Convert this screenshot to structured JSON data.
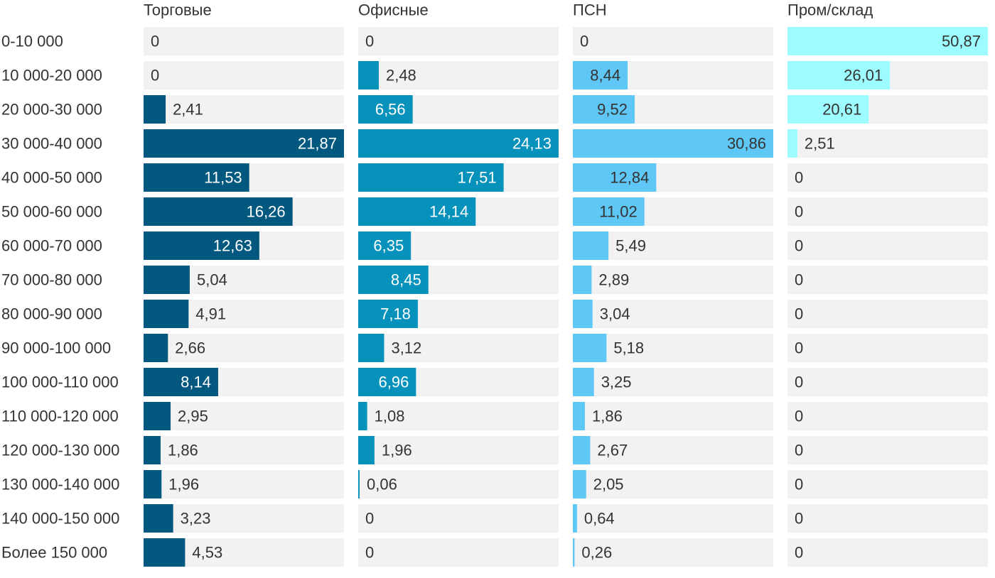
{
  "chart_data": {
    "type": "bar",
    "orientation": "horizontal",
    "layout": "small-multiples",
    "shared_axis": false,
    "grid": false,
    "legend": "none",
    "categories": [
      "0-10 000",
      "10 000-20 000",
      "20 000-30 000",
      "30 000-40 000",
      "40 000-50 000",
      "50 000-60 000",
      "60 000-70 000",
      "70 000-80 000",
      "80 000-90 000",
      "90 000-100 000",
      "100 000-110 000",
      "110 000-120 000",
      "120 000-130 000",
      "130 000-140 000",
      "140 000-150 000",
      "Более 150 000"
    ],
    "series": [
      {
        "name": "Торговые",
        "color": "#02587f",
        "values": [
          "0",
          "0",
          "2,41",
          "21,87",
          "11,53",
          "16,26",
          "12,63",
          "5,04",
          "4,91",
          "2,66",
          "8,14",
          "2,95",
          "1,86",
          "1,96",
          "3,23",
          "4,53"
        ]
      },
      {
        "name": "Офисные",
        "color": "#0692bb",
        "values": [
          "0",
          "2,48",
          "6,56",
          "24,13",
          "17,51",
          "14,14",
          "6,35",
          "8,45",
          "7,18",
          "3,12",
          "6,96",
          "1,08",
          "1,96",
          "0,06",
          "0",
          "0"
        ]
      },
      {
        "name": "ПСН",
        "color": "#5fc7f5",
        "values": [
          "0",
          "8,44",
          "9,52",
          "30,86",
          "12,84",
          "11,02",
          "5,49",
          "2,89",
          "3,04",
          "5,18",
          "3,25",
          "1,86",
          "2,67",
          "2,05",
          "0,64",
          "0,26"
        ]
      },
      {
        "name": "Пром/склад",
        "color": "#9dfcff",
        "values": [
          "50,87",
          "26,01",
          "20,61",
          "2,51",
          "0",
          "0",
          "0",
          "0",
          "0",
          "0",
          "0",
          "0",
          "0",
          "0",
          "0",
          "0"
        ]
      }
    ],
    "track_color": "#f2f2f2",
    "label_color_dark": "#333333",
    "label_color_light": "#ffffff"
  }
}
